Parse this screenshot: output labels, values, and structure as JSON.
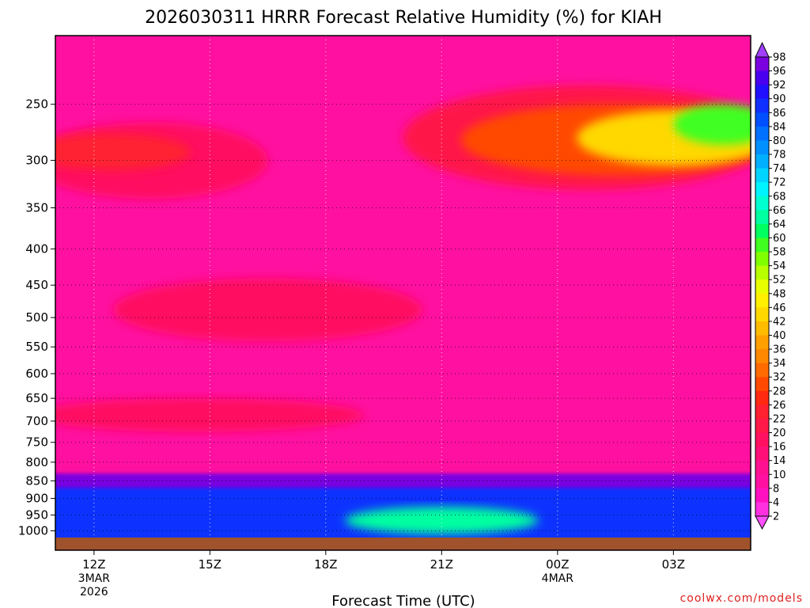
{
  "chart_data": {
    "type": "heatmap",
    "title": "2026030311 HRRR Forecast Relative Humidity (%) for KIAH",
    "xlabel": "Forecast Time (UTC)",
    "ylabel": "",
    "credit": "coolwx.com/models",
    "x_ticks": [
      {
        "hour": 12,
        "lines": [
          "12Z",
          "3MAR",
          "2026"
        ]
      },
      {
        "hour": 15,
        "lines": [
          "15Z"
        ]
      },
      {
        "hour": 18,
        "lines": [
          "18Z"
        ]
      },
      {
        "hour": 21,
        "lines": [
          "21Z"
        ]
      },
      {
        "hour": 24,
        "lines": [
          "00Z",
          "4MAR"
        ]
      },
      {
        "hour": 27,
        "lines": [
          "03Z"
        ]
      }
    ],
    "x_range_hours": [
      11,
      29
    ],
    "y_axis": "pressure (hPa), log scale, 1000 at bottom",
    "y_ticks": [
      250,
      300,
      350,
      400,
      450,
      500,
      550,
      600,
      650,
      700,
      750,
      800,
      850,
      900,
      950,
      1000
    ],
    "y_range_hpa": [
      1022,
      200
    ],
    "grid": true,
    "colorbar": {
      "levels": [
        2,
        4,
        8,
        10,
        14,
        16,
        20,
        22,
        26,
        28,
        32,
        34,
        36,
        40,
        42,
        46,
        48,
        52,
        54,
        58,
        60,
        64,
        66,
        68,
        72,
        74,
        78,
        80,
        84,
        86,
        90,
        92,
        96,
        98
      ],
      "labels": [
        "2",
        "4",
        "8",
        "10",
        "14",
        "16",
        "20",
        "22",
        "26",
        "28",
        "32",
        "34",
        "36",
        "40",
        "42",
        "46",
        "48",
        "52",
        "54",
        "58",
        "60",
        "64",
        "66",
        "68",
        "72",
        "74",
        "78",
        "80",
        "84",
        "86",
        "90",
        "92",
        "96",
        "98"
      ],
      "colors": [
        "#ff50ff",
        "#ff30e0",
        "#ff10c0",
        "#ff10a0",
        "#ff1090",
        "#ff1078",
        "#ff1060",
        "#ff1848",
        "#ff2030",
        "#ff2a10",
        "#ff4a00",
        "#ff6a00",
        "#ff8800",
        "#ffa000",
        "#ffbb00",
        "#ffd800",
        "#ffef00",
        "#e8ff00",
        "#b8ff00",
        "#80ff00",
        "#40ff20",
        "#00ff60",
        "#00ffa0",
        "#00ffd0",
        "#00f4ff",
        "#00d4ff",
        "#00b0ff",
        "#0090ff",
        "#0070ff",
        "#0050ff",
        "#1030ff",
        "#2010ff",
        "#4a00f0",
        "#7a00e0",
        "#a040ff"
      ],
      "position": "right"
    },
    "regions": [
      {
        "name": "background",
        "rh": 9
      },
      {
        "name": "upper-dry-band-left",
        "hours": [
          11,
          16.5
        ],
        "hpa": [
          265,
          340
        ],
        "rh": 18
      },
      {
        "name": "upper-dry-core-left",
        "hours": [
          11,
          14.5
        ],
        "hpa": [
          275,
          310
        ],
        "rh": 22
      },
      {
        "name": "upper-dry-band-right",
        "hours": [
          20,
          29
        ],
        "hpa": [
          235,
          330
        ],
        "rh": 20
      },
      {
        "name": "upper-dry-mid-right",
        "hours": [
          21.5,
          29
        ],
        "hpa": [
          250,
          315
        ],
        "rh": 30
      },
      {
        "name": "upper-dry-core-right",
        "hours": [
          24.5,
          29
        ],
        "hpa": [
          255,
          305
        ],
        "rh": 42
      },
      {
        "name": "upper-dry-tip-right",
        "hours": [
          27,
          29
        ],
        "hpa": [
          250,
          285
        ],
        "rh": 58
      },
      {
        "name": "mid-dry-layer",
        "hours": [
          12.5,
          20.5
        ],
        "hpa": [
          440,
          540
        ],
        "rh": 16
      },
      {
        "name": "lower-dry-layer",
        "hours": [
          11,
          19
        ],
        "hpa": [
          650,
          725
        ],
        "rh": 16
      },
      {
        "name": "boundary-layer-moist",
        "hpa_top": 830,
        "rh": 96
      },
      {
        "name": "boundary-layer-blue",
        "hpa_top": 870,
        "rh": 86
      },
      {
        "name": "surface-moist-center",
        "hours": [
          18.5,
          23.5
        ],
        "hpa": [
          925,
          1010
        ],
        "rh": 64
      }
    ]
  }
}
